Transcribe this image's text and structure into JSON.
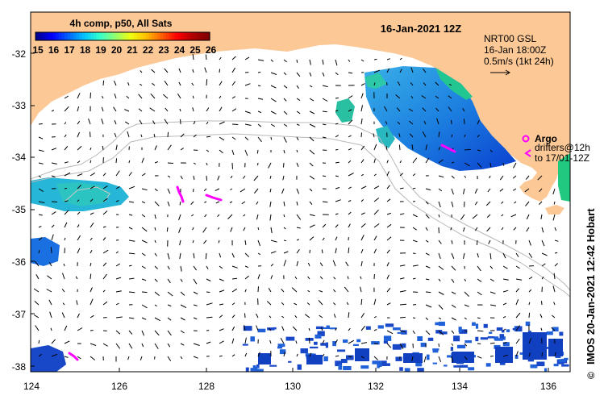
{
  "map": {
    "date_title": "16-Jan-2021 12Z",
    "colorbar": {
      "title": "4h comp, p50, All Sats",
      "ticks": [
        "15",
        "16",
        "17",
        "18",
        "19",
        "20",
        "21",
        "22",
        "23",
        "24",
        "25",
        "26"
      ],
      "colors": [
        "#00008f",
        "#0000ff",
        "#0060ff",
        "#00c0ff",
        "#30ffcf",
        "#90ff70",
        "#f0ff10",
        "#ffc000",
        "#ff6000",
        "#ff0000",
        "#b00000",
        "#800000"
      ]
    },
    "current_legend": {
      "line1": "NRT00 GSL",
      "line2": "16-Jan 18:00Z",
      "line3": "0.5m/s (1kt 24h)"
    },
    "argo_legend": {
      "argo_label": "Argo",
      "drifters_line1": "drifters@12h",
      "drifters_line2": "to 17/01-12Z"
    },
    "credit": "IMOS 20-Jan-2021 12:42 Hobart",
    "copyright_symbol": "©",
    "x_ticks": [
      "124",
      "126",
      "128",
      "130",
      "132",
      "134",
      "136"
    ],
    "y_ticks": [
      "-32",
      "-33",
      "-34",
      "-35",
      "-36",
      "-37",
      "-38"
    ],
    "colors": {
      "land": "#fcc896",
      "ocean": "#ffffff",
      "sst_mid": "#1e8fe0",
      "sst_warm": "#22c690",
      "sst_cool": "#1040c0",
      "argo": "#ff00ff",
      "bathymetry": "#b8b8b8"
    }
  }
}
